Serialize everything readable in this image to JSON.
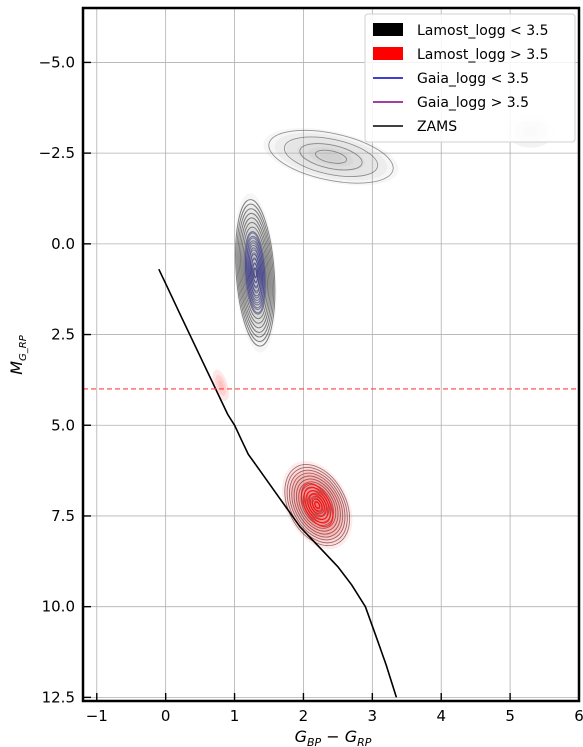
{
  "chart_data": {
    "type": "density-contour",
    "xlabel_main": "G",
    "xlabel_sub1": "BP",
    "xlabel_minus": " − ",
    "xlabel_main2": "G",
    "xlabel_sub2": "RP",
    "ylabel_main": "M",
    "ylabel_sub": "G_RP",
    "xlim": [
      -1.2,
      6.0
    ],
    "ylim": [
      12.6,
      -6.5
    ],
    "y_inverted": true,
    "grid": true,
    "xticks": [
      -1,
      0,
      1,
      2,
      3,
      4,
      5,
      6
    ],
    "xtick_labels": [
      "−1",
      "0",
      "1",
      "2",
      "3",
      "4",
      "5",
      "6"
    ],
    "yticks": [
      -5.0,
      -2.5,
      0.0,
      2.5,
      5.0,
      7.5,
      10.0,
      12.5
    ],
    "ytick_labels": [
      "−5.0",
      "−2.5",
      "0.0",
      "2.5",
      "5.0",
      "7.5",
      "10.0",
      "12.5"
    ],
    "legend_position": "top-right",
    "legend": [
      {
        "label": "Lamost_logg < 3.5",
        "kind": "patch",
        "color": "#000000"
      },
      {
        "label": "Lamost_logg > 3.5",
        "kind": "patch",
        "color": "#ff0000"
      },
      {
        "label": "Gaia_logg < 3.5",
        "kind": "line",
        "color": "#0000bb"
      },
      {
        "label": "Gaia_logg > 3.5",
        "kind": "line",
        "color": "#800080"
      },
      {
        "label": "ZAMS",
        "kind": "line",
        "color": "#000000"
      }
    ],
    "reference_line": {
      "y": 4.0,
      "color": "#ff3333",
      "style": "dashed"
    },
    "zams": {
      "x": [
        -0.1,
        0.0,
        0.1,
        0.2,
        0.3,
        0.4,
        0.5,
        0.6,
        0.7,
        0.8,
        0.9,
        1.0,
        1.1,
        1.2,
        1.35,
        1.5,
        1.65,
        1.8,
        1.95,
        2.1,
        2.3,
        2.5,
        2.7,
        2.9,
        3.05,
        3.2,
        3.35
      ],
      "y": [
        0.7,
        1.1,
        1.5,
        1.9,
        2.3,
        2.7,
        3.1,
        3.5,
        3.9,
        4.3,
        4.7,
        5.0,
        5.4,
        5.8,
        6.2,
        6.6,
        7.0,
        7.4,
        7.8,
        8.1,
        8.5,
        8.9,
        9.4,
        10.0,
        10.8,
        11.6,
        12.5
      ]
    },
    "giant_density": {
      "center": [
        1.3,
        0.8
      ],
      "spread": [
        0.3,
        2.2
      ],
      "color": "#000000"
    },
    "giant_tail": {
      "center": [
        2.4,
        -2.4
      ],
      "spread": [
        1.0,
        0.7
      ],
      "color": "#000000"
    },
    "giant_clump": {
      "center": [
        5.3,
        -3.1
      ],
      "spread": [
        0.35,
        0.45
      ],
      "color": "#000000"
    },
    "dwarf_density": {
      "center": [
        2.2,
        7.2
      ],
      "spread": [
        0.45,
        1.3
      ],
      "color": "#ff0000"
    },
    "dwarf_blob": {
      "center": [
        0.8,
        3.9
      ],
      "spread": [
        0.1,
        0.45
      ],
      "color": "#ff0000"
    }
  }
}
